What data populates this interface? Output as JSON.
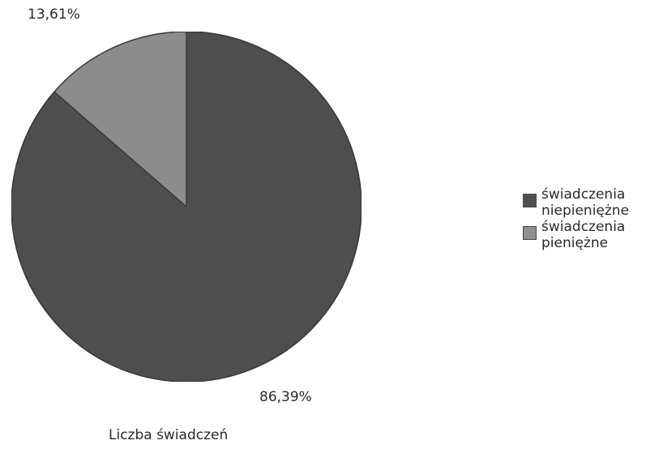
{
  "chart_data": {
    "type": "pie",
    "title": "Liczba świadczeń",
    "series": [
      {
        "name": "świadczenia niepieniężne",
        "value": 86.39,
        "label": "86,39%",
        "color": "#505050"
      },
      {
        "name": "świadczenia pieniężne",
        "value": 13.61,
        "label": "13,61%",
        "color": "#8f8f8f"
      }
    ],
    "legend_position": "right",
    "legend": [
      "świadczenia\nniepieniężne",
      "świadczenia\npieniężne"
    ]
  }
}
